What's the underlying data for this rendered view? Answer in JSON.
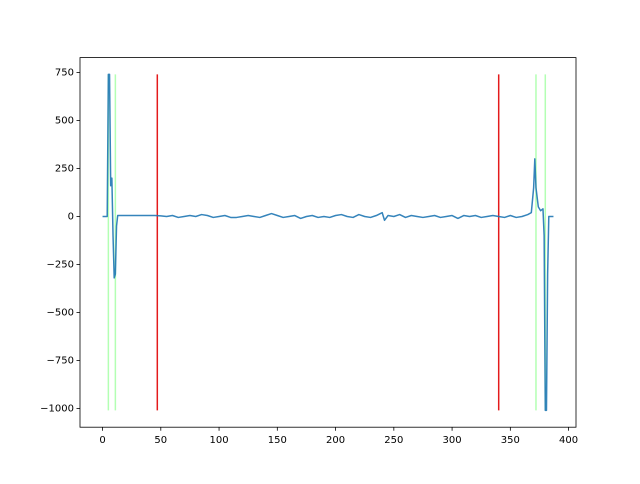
{
  "chart_data": {
    "type": "line",
    "x": [
      0,
      1,
      2,
      3,
      4,
      5,
      6,
      7,
      8,
      9,
      10,
      11,
      12,
      13,
      15,
      20,
      25,
      30,
      35,
      40,
      45,
      50,
      55,
      60,
      65,
      70,
      75,
      80,
      85,
      90,
      95,
      100,
      105,
      110,
      115,
      120,
      125,
      130,
      135,
      140,
      145,
      150,
      155,
      160,
      165,
      170,
      175,
      180,
      185,
      190,
      195,
      200,
      205,
      210,
      215,
      220,
      225,
      230,
      235,
      240,
      242,
      245,
      250,
      255,
      260,
      265,
      270,
      275,
      280,
      285,
      290,
      295,
      300,
      305,
      310,
      315,
      320,
      325,
      330,
      335,
      340,
      345,
      350,
      355,
      360,
      365,
      368,
      370,
      371,
      372,
      374,
      376,
      378,
      379,
      380,
      381,
      382,
      383,
      385,
      387
    ],
    "series": [
      {
        "color": "#1f77b4",
        "values": [
          0,
          0,
          0,
          0,
          0,
          740,
          740,
          160,
          200,
          -100,
          -320,
          -300,
          -50,
          5,
          5,
          5,
          5,
          5,
          5,
          5,
          5,
          3,
          0,
          5,
          -5,
          0,
          5,
          0,
          10,
          5,
          -5,
          0,
          5,
          -5,
          -5,
          0,
          5,
          0,
          -5,
          5,
          15,
          5,
          -5,
          0,
          5,
          -10,
          0,
          5,
          -5,
          0,
          -5,
          5,
          10,
          0,
          -5,
          10,
          0,
          -5,
          5,
          20,
          -20,
          5,
          0,
          10,
          -5,
          5,
          0,
          -5,
          0,
          5,
          -5,
          0,
          5,
          -10,
          5,
          0,
          5,
          -5,
          0,
          5,
          0,
          -5,
          5,
          -5,
          0,
          10,
          20,
          150,
          300,
          150,
          50,
          30,
          40,
          -100,
          -1010,
          -1010,
          -300,
          0,
          0,
          0
        ]
      }
    ],
    "vlines": [
      {
        "x": 5,
        "ymin": -1010,
        "ymax": 740,
        "color": "#b3ffb3"
      },
      {
        "x": 11,
        "ymin": -1010,
        "ymax": 740,
        "color": "#b3ffb3"
      },
      {
        "x": 47,
        "ymin": -1010,
        "ymax": 740,
        "color": "#e41a1c"
      },
      {
        "x": 340,
        "ymin": -1010,
        "ymax": 740,
        "color": "#e41a1c"
      },
      {
        "x": 372,
        "ymin": -1010,
        "ymax": 740,
        "color": "#b3ffb3"
      },
      {
        "x": 380,
        "ymin": -1010,
        "ymax": 740,
        "color": "#b3ffb3"
      }
    ],
    "xlim": [
      -19.35,
      406.35
    ],
    "xticks": [
      0,
      50,
      100,
      150,
      200,
      250,
      300,
      350,
      400
    ],
    "ylim": [
      -1097.5,
      827.5
    ],
    "yticks": [
      {
        "value": -1000,
        "label": "−1000"
      },
      {
        "value": -750,
        "label": "−750"
      },
      {
        "value": -500,
        "label": "−500"
      },
      {
        "value": -250,
        "label": "−250"
      },
      0,
      250,
      500,
      750
    ]
  }
}
